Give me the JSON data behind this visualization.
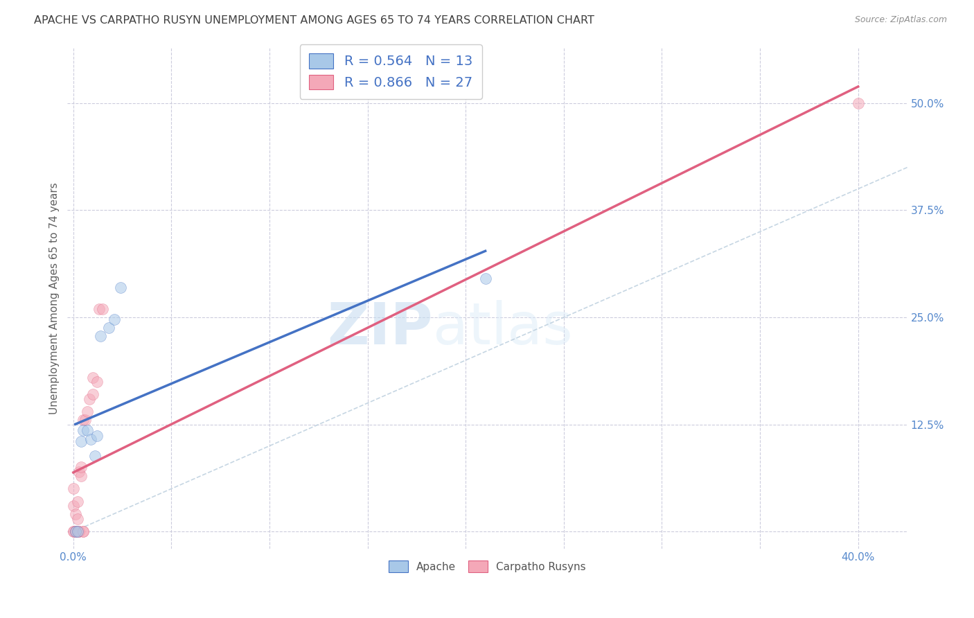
{
  "title": "APACHE VS CARPATHO RUSYN UNEMPLOYMENT AMONG AGES 65 TO 74 YEARS CORRELATION CHART",
  "source": "Source: ZipAtlas.com",
  "ylabel": "Unemployment Among Ages 65 to 74 years",
  "xmin": -0.003,
  "xmax": 0.425,
  "ymin": -0.02,
  "ymax": 0.565,
  "xticks": [
    0.0,
    0.05,
    0.1,
    0.15,
    0.2,
    0.25,
    0.3,
    0.35,
    0.4
  ],
  "yticks": [
    0.0,
    0.125,
    0.25,
    0.375,
    0.5
  ],
  "apache_x": [
    0.001,
    0.002,
    0.004,
    0.005,
    0.007,
    0.009,
    0.011,
    0.012,
    0.014,
    0.018,
    0.021,
    0.024,
    0.21
  ],
  "apache_y": [
    0.0,
    0.0,
    0.105,
    0.118,
    0.118,
    0.108,
    0.088,
    0.112,
    0.228,
    0.238,
    0.248,
    0.285,
    0.295
  ],
  "carpatho_x": [
    0.0,
    0.0,
    0.0,
    0.0,
    0.001,
    0.001,
    0.001,
    0.002,
    0.002,
    0.002,
    0.003,
    0.003,
    0.003,
    0.004,
    0.004,
    0.005,
    0.005,
    0.005,
    0.006,
    0.007,
    0.008,
    0.01,
    0.01,
    0.012,
    0.013,
    0.015,
    0.4
  ],
  "carpatho_y": [
    0.0,
    0.0,
    0.03,
    0.05,
    0.0,
    0.0,
    0.02,
    0.0,
    0.015,
    0.035,
    0.0,
    0.0,
    0.07,
    0.065,
    0.075,
    0.0,
    0.0,
    0.13,
    0.13,
    0.14,
    0.155,
    0.16,
    0.18,
    0.175,
    0.26,
    0.26,
    0.5
  ],
  "apache_color": "#a8c8e8",
  "carpatho_color": "#f4a8b8",
  "apache_line_color": "#4472c4",
  "carpatho_line_color": "#e06080",
  "diag_line_color": "#b8ccdc",
  "apache_R": "0.564",
  "apache_N": "13",
  "carpatho_R": "0.866",
  "carpatho_N": "27",
  "marker_size": 130,
  "marker_alpha": 0.55,
  "background_color": "#ffffff",
  "grid_color": "#ccccdd",
  "title_color": "#404040",
  "legend_text_color": "#4472c4",
  "tick_color": "#5588cc",
  "watermark_zip": "ZIP",
  "watermark_atlas": "atlas"
}
